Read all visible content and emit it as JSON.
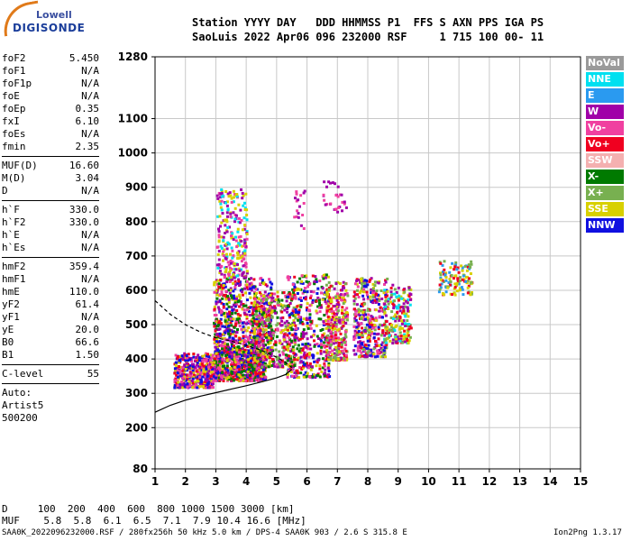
{
  "logo": {
    "line1": "Lowell",
    "line2": "DIGISONDE"
  },
  "header": {
    "line1": "Station YYYY DAY   DDD HHMMSS P1  FFS S AXN PPS IGA PS",
    "line2": "SaoLuis 2022 Apr06 096 232000 RSF     1 715 100 00- 11"
  },
  "params": {
    "group1": [
      {
        "k": "foF2",
        "v": "5.450"
      },
      {
        "k": "foF1",
        "v": "N/A"
      },
      {
        "k": "foF1p",
        "v": "N/A"
      },
      {
        "k": "foE",
        "v": "N/A"
      },
      {
        "k": "foEp",
        "v": "0.35"
      },
      {
        "k": "fxI",
        "v": "6.10"
      },
      {
        "k": "foEs",
        "v": "N/A"
      },
      {
        "k": "fmin",
        "v": "2.35"
      }
    ],
    "group2": [
      {
        "k": "MUF(D)",
        "v": "16.60"
      },
      {
        "k": "M(D)",
        "v": "3.04"
      },
      {
        "k": "D",
        "v": "N/A"
      }
    ],
    "group3": [
      {
        "k": "h`F",
        "v": "330.0"
      },
      {
        "k": "h`F2",
        "v": "330.0"
      },
      {
        "k": "h`E",
        "v": "N/A"
      },
      {
        "k": "h`Es",
        "v": "N/A"
      }
    ],
    "group4": [
      {
        "k": "hmF2",
        "v": "359.4"
      },
      {
        "k": "hmF1",
        "v": "N/A"
      },
      {
        "k": "hmE",
        "v": "110.0"
      },
      {
        "k": "yF2",
        "v": "61.4"
      },
      {
        "k": "yF1",
        "v": "N/A"
      },
      {
        "k": "yE",
        "v": "20.0"
      },
      {
        "k": "B0",
        "v": "66.6"
      },
      {
        "k": "B1",
        "v": "1.50"
      }
    ],
    "group5": [
      {
        "k": "C-level",
        "v": "55"
      }
    ],
    "auto": [
      "Auto:",
      "Artist5",
      "500200"
    ]
  },
  "legend": [
    {
      "label": "NoVal",
      "color": "#9a9a9a"
    },
    {
      "label": "NNE",
      "color": "#00e0f0"
    },
    {
      "label": "E",
      "color": "#2a9af0"
    },
    {
      "label": "W",
      "color": "#a000a8"
    },
    {
      "label": "Vo-",
      "color": "#f040a0"
    },
    {
      "label": "Vo+",
      "color": "#f00020"
    },
    {
      "label": "SSW",
      "color": "#f4b0b0"
    },
    {
      "label": "X-",
      "color": "#007a00"
    },
    {
      "label": "X+",
      "color": "#78b050"
    },
    {
      "label": "SSE",
      "color": "#d8d000"
    },
    {
      "label": "NNW",
      "color": "#1010e0"
    }
  ],
  "chart_data": {
    "type": "scatter",
    "xlim": [
      1,
      15
    ],
    "ylim": [
      80,
      1280
    ],
    "x_ticks": [
      1,
      2,
      3,
      4,
      5,
      6,
      7,
      8,
      9,
      10,
      11,
      12,
      13,
      14,
      15
    ],
    "y_ticks": [
      80,
      200,
      300,
      400,
      500,
      600,
      700,
      800,
      900,
      1000,
      1100,
      1280
    ],
    "grid": true,
    "clusters": [
      {
        "x": [
          1.6,
          2.9
        ],
        "y": [
          320,
          420
        ],
        "n": 450,
        "palette": [
          10,
          5,
          4,
          3,
          9
        ]
      },
      {
        "x": [
          2.9,
          4.6
        ],
        "y": [
          340,
          430
        ],
        "n": 700,
        "palette": [
          5,
          4,
          3,
          10,
          9,
          7
        ]
      },
      {
        "x": [
          2.9,
          4.8
        ],
        "y": [
          420,
          640
        ],
        "n": 700,
        "palette": [
          3,
          4,
          5,
          9,
          10,
          7
        ]
      },
      {
        "x": [
          3.0,
          4.0
        ],
        "y": [
          640,
          900
        ],
        "n": 260,
        "palette": [
          3,
          4,
          1,
          9
        ]
      },
      {
        "x": [
          4.2,
          5.6
        ],
        "y": [
          380,
          600
        ],
        "n": 400,
        "palette": [
          5,
          4,
          3,
          9,
          7,
          8
        ]
      },
      {
        "x": [
          5.3,
          6.7
        ],
        "y": [
          350,
          650
        ],
        "n": 450,
        "palette": [
          5,
          4,
          3,
          9,
          7,
          10
        ]
      },
      {
        "x": [
          6.6,
          7.3
        ],
        "y": [
          400,
          630
        ],
        "n": 300,
        "palette": [
          5,
          4,
          3,
          9,
          8
        ]
      },
      {
        "x": [
          7.5,
          8.6
        ],
        "y": [
          410,
          640
        ],
        "n": 380,
        "palette": [
          5,
          4,
          3,
          9,
          8,
          10
        ]
      },
      {
        "x": [
          8.5,
          9.4
        ],
        "y": [
          450,
          620
        ],
        "n": 200,
        "palette": [
          3,
          9,
          5,
          8,
          1
        ]
      },
      {
        "x": [
          10.3,
          11.4
        ],
        "y": [
          590,
          690
        ],
        "n": 120,
        "palette": [
          9,
          8,
          2,
          5
        ]
      },
      {
        "x": [
          6.5,
          7.3
        ],
        "y": [
          830,
          920
        ],
        "n": 30,
        "palette": [
          3,
          4
        ]
      },
      {
        "x": [
          5.5,
          5.9
        ],
        "y": [
          780,
          900
        ],
        "n": 18,
        "palette": [
          3,
          4
        ]
      }
    ],
    "curves": [
      {
        "name": "profile",
        "x": [
          1.0,
          1.5,
          2.0,
          2.5,
          3.0,
          3.5,
          4.0,
          4.5,
          5.0,
          5.3,
          5.5
        ],
        "y": [
          245,
          265,
          280,
          292,
          302,
          312,
          322,
          333,
          345,
          355,
          370
        ]
      },
      {
        "name": "trace",
        "x": [
          1.0,
          1.5,
          2.0,
          2.5,
          3.0,
          3.5,
          4.0,
          4.5,
          5.0,
          5.3,
          5.5
        ],
        "y": [
          570,
          530,
          500,
          478,
          462,
          452,
          440,
          425,
          405,
          390,
          375
        ]
      }
    ]
  },
  "footer": {
    "d_line": "D     100  200  400  600  800 1000 1500 3000 [km]",
    "muf_line": "MUF    5.8  5.8  6.1  6.5  7.1  7.9 10.4 16.6 [MHz]",
    "file_line": "SAA0K_2022096232000.RSF / 280fx256h 50 kHz 5.0 km / DPS-4 SAA0K 903 / 2.6 S 315.8 E",
    "version": "Ion2Png 1.3.17"
  }
}
